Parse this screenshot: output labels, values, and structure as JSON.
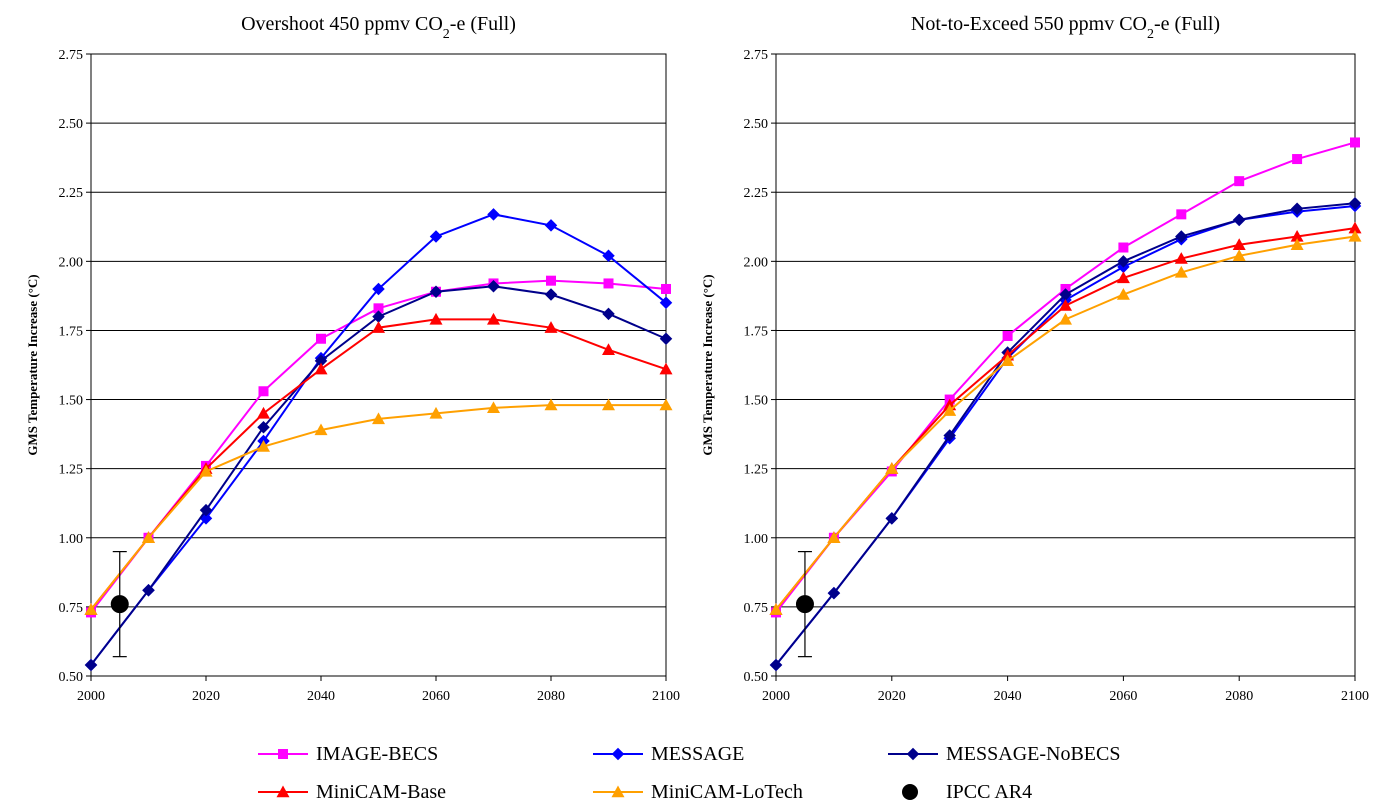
{
  "chart_data": [
    {
      "type": "line",
      "title_main": "Overshoot 450 ppmv CO",
      "title_sub": "2",
      "title_tail": "-e (Full)",
      "xlabel": "",
      "ylabel": "GMS Temperature Increase (°C)",
      "xlim": [
        2000,
        2100
      ],
      "ylim": [
        0.5,
        2.75
      ],
      "x_ticks": [
        "2000",
        "2020",
        "2040",
        "2060",
        "2080",
        "2100"
      ],
      "y_ticks": [
        "0.50",
        "0.75",
        "1.00",
        "1.25",
        "1.50",
        "1.75",
        "2.00",
        "2.25",
        "2.50",
        "2.75"
      ],
      "grid": "horizontal",
      "x": [
        2000,
        2010,
        2020,
        2030,
        2040,
        2050,
        2060,
        2070,
        2080,
        2090,
        2100
      ],
      "series": [
        {
          "name": "IMAGE-BECS",
          "color": "#ff00ff",
          "marker": "square",
          "values": [
            0.73,
            1.0,
            1.26,
            1.53,
            1.72,
            1.83,
            1.89,
            1.92,
            1.93,
            1.92,
            1.9
          ]
        },
        {
          "name": "MESSAGE",
          "color": "#0000ff",
          "marker": "diamond",
          "values": [
            0.54,
            0.81,
            1.07,
            1.35,
            1.65,
            1.9,
            2.09,
            2.17,
            2.13,
            2.02,
            1.85
          ]
        },
        {
          "name": "MESSAGE-NoBECS",
          "color": "#00008b",
          "marker": "diamond",
          "values": [
            0.54,
            0.81,
            1.1,
            1.4,
            1.64,
            1.8,
            1.89,
            1.91,
            1.88,
            1.81,
            1.72
          ]
        },
        {
          "name": "MiniCAM-Base",
          "color": "#ff0000",
          "marker": "triangle",
          "values": [
            0.74,
            1.0,
            1.25,
            1.45,
            1.61,
            1.76,
            1.79,
            1.79,
            1.76,
            1.68,
            1.61
          ]
        },
        {
          "name": "MiniCAM-LoTech",
          "color": "#ffa000",
          "marker": "triangle",
          "values": [
            0.74,
            1.0,
            1.24,
            1.33,
            1.39,
            1.43,
            1.45,
            1.47,
            1.48,
            1.48,
            1.48
          ]
        }
      ],
      "ipcc": {
        "name": "IPCC AR4",
        "x": 2005,
        "y": 0.76,
        "low": 0.57,
        "high": 0.95
      }
    },
    {
      "type": "line",
      "title_main": "Not-to-Exceed 550 ppmv CO",
      "title_sub": "2",
      "title_tail": "-e (Full)",
      "xlabel": "",
      "ylabel": "GMS Temperature Increase (°C)",
      "xlim": [
        2000,
        2100
      ],
      "ylim": [
        0.5,
        2.75
      ],
      "x_ticks": [
        "2000",
        "2020",
        "2040",
        "2060",
        "2080",
        "2100"
      ],
      "y_ticks": [
        "0.50",
        "0.75",
        "1.00",
        "1.25",
        "1.50",
        "1.75",
        "2.00",
        "2.25",
        "2.50",
        "2.75"
      ],
      "grid": "horizontal",
      "x": [
        2000,
        2010,
        2020,
        2030,
        2040,
        2050,
        2060,
        2070,
        2080,
        2090,
        2100
      ],
      "series": [
        {
          "name": "IMAGE-BECS",
          "color": "#ff00ff",
          "marker": "square",
          "values": [
            0.73,
            1.0,
            1.24,
            1.5,
            1.73,
            1.9,
            2.05,
            2.17,
            2.29,
            2.37,
            2.43
          ]
        },
        {
          "name": "MESSAGE",
          "color": "#0000ff",
          "marker": "diamond",
          "values": [
            0.54,
            0.8,
            1.07,
            1.36,
            1.65,
            1.86,
            1.98,
            2.08,
            2.15,
            2.18,
            2.2
          ]
        },
        {
          "name": "MESSAGE-NoBECS",
          "color": "#00008b",
          "marker": "diamond",
          "values": [
            0.54,
            0.8,
            1.07,
            1.37,
            1.67,
            1.88,
            2.0,
            2.09,
            2.15,
            2.19,
            2.21
          ]
        },
        {
          "name": "MiniCAM-Base",
          "color": "#ff0000",
          "marker": "triangle",
          "values": [
            0.74,
            1.0,
            1.25,
            1.48,
            1.66,
            1.84,
            1.94,
            2.01,
            2.06,
            2.09,
            2.12
          ]
        },
        {
          "name": "MiniCAM-LoTech",
          "color": "#ffa000",
          "marker": "triangle",
          "values": [
            0.74,
            1.0,
            1.25,
            1.46,
            1.64,
            1.79,
            1.88,
            1.96,
            2.02,
            2.06,
            2.09
          ]
        }
      ],
      "ipcc": {
        "name": "IPCC AR4",
        "x": 2005,
        "y": 0.76,
        "low": 0.57,
        "high": 0.95
      }
    }
  ],
  "legend": {
    "placement": "bottom",
    "items": [
      {
        "label": "IMAGE-BECS",
        "color": "#ff00ff",
        "marker": "square"
      },
      {
        "label": "MESSAGE",
        "color": "#0000ff",
        "marker": "diamond"
      },
      {
        "label": "MESSAGE-NoBECS",
        "color": "#00008b",
        "marker": "diamond"
      },
      {
        "label": "MiniCAM-Base",
        "color": "#ff0000",
        "marker": "triangle"
      },
      {
        "label": "MiniCAM-LoTech",
        "color": "#ffa000",
        "marker": "triangle"
      },
      {
        "label": "IPCC AR4",
        "color": "#000000",
        "marker": "circle"
      }
    ]
  }
}
